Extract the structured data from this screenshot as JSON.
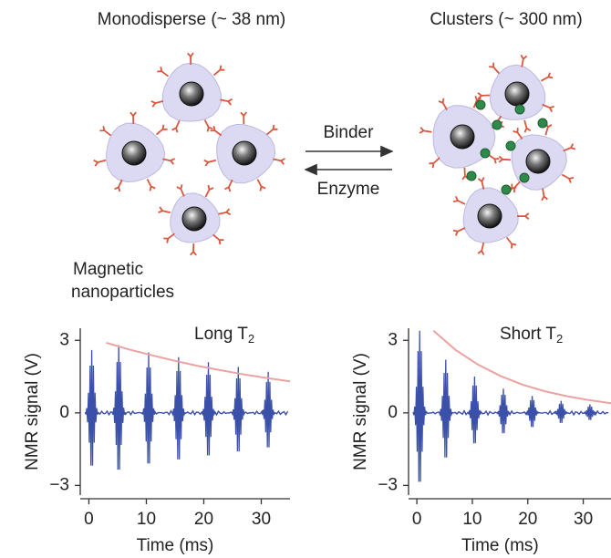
{
  "diagram": {
    "left_title": "Monodisperse (~ 38 nm)",
    "right_title": "Clusters (~ 300 nm)",
    "forward_label": "Binder",
    "reverse_label": "Enzyme",
    "particle_label": [
      "Magnetic",
      "nanoparticles"
    ]
  },
  "charts": [
    {
      "type": "line",
      "title": "Long T",
      "title_subscript": "2",
      "xlabel": "Time (ms)",
      "ylabel": "NMR signal (V)",
      "xlim": [
        -1.5,
        35
      ],
      "ylim": [
        -3.4,
        3.5
      ],
      "xticks": [
        0,
        10,
        20,
        30
      ],
      "yticks": [
        {
          "value": -3,
          "label": "−3"
        },
        0,
        3
      ],
      "echoes": {
        "color": "#3b50a8",
        "x": [
          0.5,
          5.2,
          10.4,
          15.6,
          20.8,
          26,
          31.2
        ],
        "values": [
          2.6,
          2.8,
          2.5,
          2.3,
          2.1,
          1.9,
          1.7
        ]
      },
      "envelope": {
        "color": "#eba3a0",
        "x": [
          3,
          7,
          11,
          15,
          19,
          23,
          27,
          31,
          35
        ],
        "values": [
          2.9,
          2.62,
          2.38,
          2.15,
          1.94,
          1.76,
          1.59,
          1.44,
          1.3
        ]
      }
    },
    {
      "type": "line",
      "title": "Short T",
      "title_subscript": "2",
      "xlabel": "Time (ms)",
      "ylabel": "NMR signal (V)",
      "xlim": [
        -1.5,
        35
      ],
      "ylim": [
        -3.4,
        3.5
      ],
      "xticks": [
        0,
        10,
        20,
        30
      ],
      "yticks": [
        {
          "value": -3,
          "label": "−3"
        },
        0,
        3
      ],
      "echoes": {
        "color": "#3b50a8",
        "x": [
          0.5,
          5.2,
          10.4,
          15.6,
          20.8,
          26,
          31.2
        ],
        "values": [
          3.4,
          2.2,
          1.5,
          1.0,
          0.7,
          0.5,
          0.35
        ]
      },
      "envelope": {
        "color": "#eba3a0",
        "x": [
          3,
          7,
          11,
          15,
          19,
          23,
          27,
          31,
          35
        ],
        "values": [
          3.4,
          2.6,
          2.0,
          1.53,
          1.17,
          0.9,
          0.69,
          0.53,
          0.4
        ]
      }
    }
  ]
}
